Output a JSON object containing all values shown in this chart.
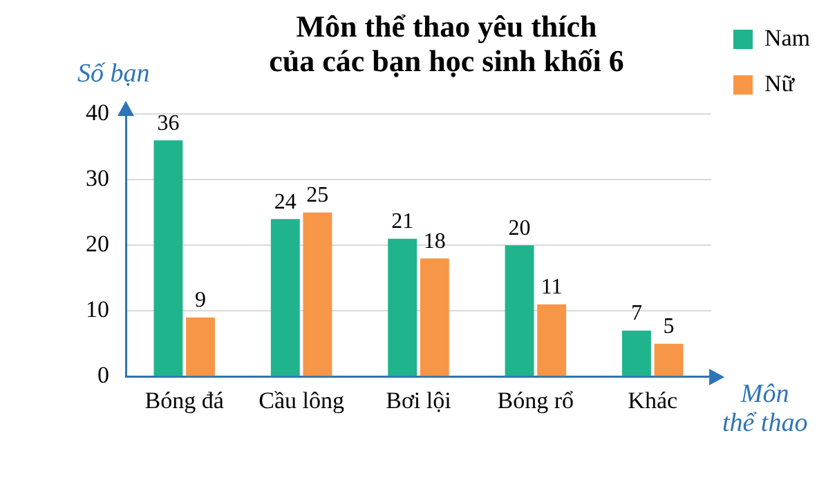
{
  "chart_data": {
    "type": "bar",
    "title": "Môn thể thao yêu thích\ncủa các bạn học sinh khối 6",
    "xlabel": "Môn\nthể thao",
    "ylabel": "Số bạn",
    "categories": [
      "Bóng đá",
      "Cầu lông",
      "Bơi lội",
      "Bóng rổ",
      "Khác"
    ],
    "series": [
      {
        "name": "Nam",
        "color": "#20b48c",
        "values": [
          36,
          24,
          21,
          20,
          7
        ]
      },
      {
        "name": "Nữ",
        "color": "#f79646",
        "values": [
          9,
          25,
          18,
          11,
          5
        ]
      }
    ],
    "ylim": [
      0,
      40
    ],
    "yticks": [
      0,
      10,
      20,
      30,
      40
    ],
    "grid": "y",
    "legend": "right",
    "data_labels": true
  }
}
